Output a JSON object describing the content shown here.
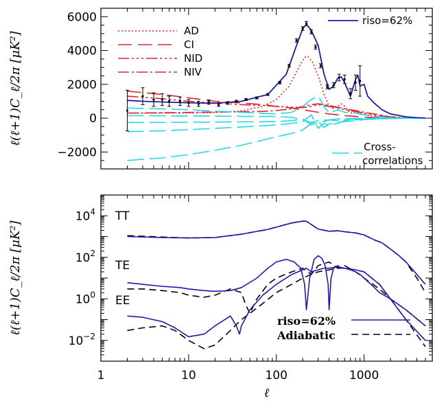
{
  "chart_data": [
    {
      "type": "line",
      "panel": "top",
      "xscale": "log",
      "xlim": [
        1,
        6000
      ],
      "ylim": [
        -3000,
        6500
      ],
      "yticks": [
        -2000,
        0,
        2000,
        4000,
        6000
      ],
      "ylabel": "ℓ(ℓ+1)C_ℓ/2π [μK²]",
      "series": [
        {
          "name": "riso=62%",
          "color": "#1a1ab0",
          "dash": "none",
          "x": [
            2,
            3,
            5,
            8,
            12,
            20,
            40,
            80,
            130,
            170,
            200,
            220,
            250,
            300,
            350,
            400,
            450,
            500,
            550,
            600,
            700,
            800,
            850,
            900,
            1000,
            1100,
            1300,
            1600,
            2000,
            3000,
            4000,
            5000
          ],
          "y": [
            1050,
            1000,
            960,
            920,
            900,
            880,
            1000,
            1400,
            2600,
            4300,
            5300,
            5550,
            5200,
            4300,
            2600,
            1700,
            1900,
            2350,
            2450,
            2100,
            1300,
            2300,
            2550,
            1900,
            2000,
            1300,
            900,
            500,
            250,
            80,
            30,
            10
          ]
        },
        {
          "name": "AD",
          "color": "#e0202a",
          "dash": "2,3",
          "x": [
            2,
            5,
            10,
            20,
            40,
            70,
            100,
            140,
            180,
            210,
            230,
            260,
            300,
            350,
            400,
            450,
            500,
            550,
            600,
            700,
            800,
            900,
            1000,
            1200,
            1600,
            2000,
            3000,
            5000
          ],
          "y": [
            300,
            300,
            300,
            330,
            430,
            700,
            1100,
            1900,
            3000,
            3600,
            3650,
            3300,
            2500,
            1400,
            700,
            550,
            700,
            850,
            700,
            300,
            350,
            300,
            250,
            150,
            80,
            40,
            15,
            5
          ]
        },
        {
          "name": "CI",
          "color": "#e0202a",
          "dash": "20,9",
          "x": [
            2,
            5,
            10,
            20,
            40,
            70,
            100,
            150,
            200,
            300,
            400,
            600,
            800,
            1000,
            1500,
            2000,
            3000,
            5000
          ],
          "y": [
            1600,
            1400,
            1200,
            1000,
            900,
            800,
            700,
            600,
            500,
            350,
            250,
            150,
            100,
            60,
            30,
            15,
            5,
            2
          ]
        },
        {
          "name": "NID",
          "color": "#e0202a",
          "dash": "16,4,3,4,3,4,3,4",
          "x": [
            2,
            5,
            10,
            20,
            40,
            70,
            100,
            150,
            200,
            250,
            300,
            400,
            500,
            600,
            800,
            1000,
            1500,
            2000,
            3000,
            5000
          ],
          "y": [
            1300,
            1150,
            1000,
            900,
            800,
            750,
            700,
            650,
            620,
            700,
            800,
            700,
            600,
            500,
            400,
            300,
            150,
            60,
            20,
            5
          ]
        },
        {
          "name": "NIV",
          "color": "#e0202a",
          "dash": "16,4,3,4",
          "x": [
            2,
            5,
            10,
            20,
            40,
            70,
            100,
            150,
            200,
            250,
            300,
            400,
            500,
            600,
            800,
            1000,
            1500,
            2000,
            3000,
            5000
          ],
          "y": [
            300,
            320,
            340,
            360,
            380,
            400,
            450,
            550,
            700,
            800,
            850,
            750,
            650,
            550,
            450,
            350,
            200,
            80,
            20,
            5
          ]
        },
        {
          "name": "Cross-correlations",
          "color": "#22d8e8",
          "dash": "24,8",
          "x": [
            2,
            5,
            10,
            20,
            40,
            70,
            100,
            150,
            200,
            250,
            300,
            350,
            400,
            500,
            600,
            800,
            1000,
            1500,
            2000,
            3000,
            5000
          ],
          "y": [
            -2500,
            -2350,
            -2150,
            -1900,
            -1600,
            -1300,
            -1100,
            -900,
            -700,
            -300,
            -200,
            -550,
            -350,
            -250,
            -200,
            -150,
            -80,
            -40,
            -20,
            -5,
            0
          ]
        },
        {
          "name": "",
          "color": "#22d8e8",
          "dash": "24,8",
          "x": [
            2,
            5,
            10,
            20,
            40,
            70,
            100,
            150,
            200,
            250,
            300,
            350,
            400,
            500,
            600,
            800,
            1000,
            1500,
            2000,
            3000,
            5000
          ],
          "y": [
            -800,
            -750,
            -680,
            -600,
            -520,
            -450,
            -400,
            -300,
            -200,
            200,
            -600,
            -300,
            -450,
            -300,
            -150,
            -100,
            -60,
            -30,
            -10,
            0,
            0
          ]
        },
        {
          "name": "",
          "color": "#22d8e8",
          "dash": "24,8",
          "x": [
            2,
            5,
            10,
            20,
            40,
            70,
            100,
            150,
            200,
            250,
            300,
            350,
            400,
            500,
            600,
            800,
            1000,
            1500,
            2000,
            3000,
            5000
          ],
          "y": [
            -250,
            -250,
            -240,
            -230,
            -220,
            -210,
            -200,
            -150,
            -50,
            -400,
            -250,
            -200,
            -100,
            -150,
            -80,
            -50,
            -30,
            -20,
            -10,
            0,
            0
          ]
        },
        {
          "name": "",
          "color": "#22d8e8",
          "dash": "24,8",
          "x": [
            2,
            5,
            10,
            20,
            40,
            70,
            100,
            150,
            200,
            250,
            300,
            350,
            400,
            500,
            600,
            800,
            1000,
            1500,
            2000,
            3000,
            5000
          ],
          "y": [
            600,
            550,
            500,
            420,
            350,
            280,
            250,
            350,
            700,
            1100,
            1300,
            700,
            300,
            500,
            350,
            300,
            200,
            80,
            30,
            5,
            0
          ]
        },
        {
          "name": "",
          "color": "#22d8e8",
          "dash": "24,8",
          "x": [
            2,
            5,
            10,
            20,
            40,
            70,
            100,
            150,
            200,
            250,
            300,
            400,
            500,
            600,
            800,
            1000,
            1500,
            2000,
            3000,
            5000
          ],
          "y": [
            150,
            140,
            130,
            120,
            110,
            100,
            100,
            50,
            -100,
            -250,
            -150,
            -100,
            -50,
            -30,
            -20,
            -10,
            0,
            0,
            0,
            0
          ]
        }
      ],
      "data_points": {
        "x": [
          2,
          3,
          4,
          5,
          6,
          8,
          10,
          13,
          17,
          22,
          28,
          35,
          45,
          60,
          80,
          110,
          140,
          170,
          200,
          220,
          250,
          280,
          320,
          380,
          450,
          520,
          600,
          700,
          800,
          900
        ],
        "y": [
          450,
          1300,
          1100,
          1100,
          1000,
          1000,
          900,
          850,
          950,
          800,
          900,
          1000,
          1100,
          1200,
          1400,
          2100,
          3100,
          4600,
          5300,
          5600,
          5100,
          4200,
          3100,
          1850,
          1950,
          2400,
          2300,
          1450,
          2100,
          2200
        ],
        "err": [
          1200,
          500,
          400,
          350,
          300,
          250,
          200,
          150,
          130,
          100,
          80,
          60,
          60,
          60,
          60,
          70,
          80,
          100,
          110,
          120,
          120,
          120,
          120,
          120,
          150,
          200,
          250,
          300,
          450,
          900
        ]
      },
      "legend": [
        "AD",
        "CI",
        "NID",
        "NIV"
      ],
      "legend_top_right": "riso=62%",
      "legend_bottom": "Cross-correlations"
    },
    {
      "type": "line",
      "panel": "bottom",
      "xscale": "log",
      "yscale": "log",
      "xlim": [
        1,
        6000
      ],
      "ylim": [
        0.001,
        100000
      ],
      "xticks": [
        1,
        10,
        100,
        1000
      ],
      "xlabel": "ℓ",
      "ylabel": "ℓ(ℓ+1)C_ℓ/2π [μK²]",
      "panel_labels": [
        "TT",
        "TE",
        "EE"
      ],
      "series": [
        {
          "name": "riso=62% TT",
          "color": "#1a1ab0",
          "dash": "none",
          "x": [
            2,
            5,
            10,
            20,
            40,
            80,
            150,
            200,
            220,
            300,
            400,
            500,
            600,
            800,
            1000,
            1300,
            1600,
            2000,
            2500,
            3000,
            4000,
            5000
          ],
          "y": [
            1000,
            900,
            850,
            900,
            1300,
            2200,
            4500,
            5500,
            5400,
            2300,
            1800,
            1900,
            1700,
            1500,
            1200,
            700,
            500,
            250,
            120,
            60,
            15,
            5
          ]
        },
        {
          "name": "Adiabatic TT",
          "color": "#000000",
          "dash": "10,6",
          "x": [
            2,
            5,
            10,
            20,
            40,
            80,
            150,
            200,
            220,
            300,
            400,
            500,
            600,
            800,
            1000,
            1300,
            1600,
            2000,
            2500,
            3000,
            4000,
            5000
          ],
          "y": [
            1100,
            950,
            850,
            900,
            1300,
            2200,
            4500,
            5500,
            5400,
            2300,
            1800,
            1900,
            1700,
            1500,
            1200,
            700,
            500,
            250,
            120,
            60,
            10,
            2
          ]
        },
        {
          "name": "riso=62% TE",
          "color": "#1a1ab0",
          "dash": "none",
          "x": [
            2,
            3,
            5,
            8,
            10,
            15,
            20,
            30,
            40,
            60,
            80,
            100,
            130,
            160,
            190,
            210,
            220,
            240,
            270,
            300,
            330,
            360,
            390,
            400,
            420,
            450,
            500,
            550,
            600,
            700,
            800,
            900,
            1000,
            1200,
            1500,
            2000,
            3000,
            5000
          ],
          "y": [
            6,
            5,
            4,
            3.5,
            3,
            2.5,
            2.3,
            2.5,
            3.5,
            10,
            30,
            60,
            80,
            60,
            30,
            5,
            0.3,
            10,
            80,
            120,
            90,
            40,
            5,
            0.3,
            10,
            30,
            40,
            30,
            30,
            25,
            20,
            15,
            10,
            5,
            2,
            1,
            0.3,
            0.05
          ]
        },
        {
          "name": "Adiabatic TE",
          "color": "#000000",
          "dash": "10,6",
          "x": [
            2,
            3,
            5,
            8,
            10,
            15,
            20,
            30,
            40,
            45,
            50,
            60,
            80,
            100,
            150,
            200,
            250,
            300,
            400,
            500,
            600,
            800,
            1000,
            1500,
            2000,
            3000,
            5000
          ],
          "y": [
            3,
            3,
            2.5,
            2,
            1.5,
            1.2,
            1.5,
            3,
            2,
            0.5,
            0.2,
            1,
            5,
            10,
            20,
            30,
            15,
            40,
            60,
            30,
            40,
            20,
            10,
            3,
            1,
            0.3,
            0.05
          ]
        },
        {
          "name": "riso=62% EE",
          "color": "#1a1ab0",
          "dash": "none",
          "x": [
            2,
            3,
            5,
            7,
            10,
            15,
            20,
            30,
            35,
            38,
            40,
            50,
            70,
            100,
            150,
            200,
            220,
            250,
            300,
            350,
            400,
            500,
            600,
            800,
            1000,
            1500,
            2000,
            3000,
            5000
          ],
          "y": [
            0.15,
            0.13,
            0.08,
            0.04,
            0.015,
            0.02,
            0.05,
            0.15,
            0.05,
            0.02,
            0.05,
            0.3,
            1.5,
            5,
            15,
            25,
            30,
            20,
            25,
            30,
            30,
            35,
            30,
            25,
            20,
            5,
            1,
            0.1,
            0.01
          ]
        },
        {
          "name": "Adiabatic EE",
          "color": "#000000",
          "dash": "10,6",
          "x": [
            2,
            3,
            5,
            7,
            10,
            15,
            20,
            30,
            40,
            50,
            70,
            100,
            150,
            200,
            250,
            300,
            400,
            500,
            600,
            800,
            1000,
            1500,
            2000,
            3000,
            5000
          ],
          "y": [
            0.03,
            0.04,
            0.05,
            0.03,
            0.01,
            0.004,
            0.006,
            0.03,
            0.1,
            0.2,
            0.6,
            2,
            5,
            10,
            15,
            20,
            25,
            30,
            30,
            25,
            20,
            5,
            1,
            0.1,
            0.005
          ]
        }
      ],
      "legend": [
        "riso=62%",
        "Adiabatic"
      ]
    }
  ]
}
